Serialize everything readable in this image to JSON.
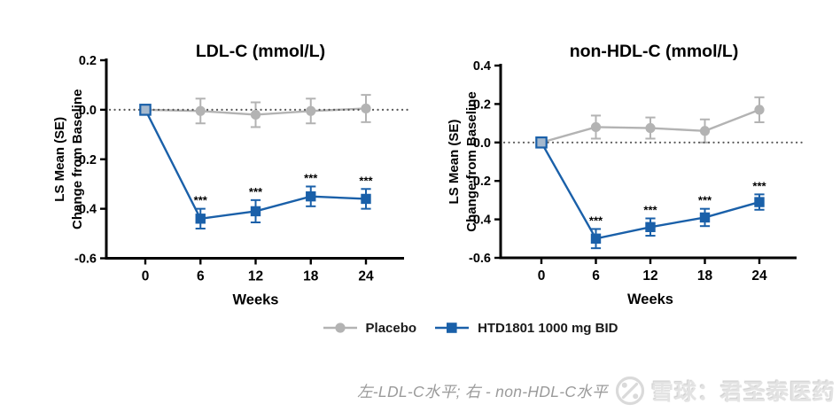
{
  "legend": {
    "items": [
      {
        "label": "Placebo",
        "color": "#b3b3b3",
        "marker": "circle"
      },
      {
        "label": "HTD1801 1000 mg BID",
        "color": "#1a60a9",
        "marker": "square"
      }
    ]
  },
  "caption": {
    "text": "左-LDL-C水平; 右 - non-HDL-C水平"
  },
  "watermark": {
    "brand": "雪球：君圣泰医药",
    "logo_icon": "xueqiu-logo-icon"
  },
  "chart_data": [
    {
      "type": "line",
      "title": "LDL-C (mmol/L)",
      "xlabel": "Weeks",
      "ylabel_line1": "LS Mean (SE)",
      "ylabel_line2": "Change from Baseline",
      "x": [
        0,
        6,
        12,
        18,
        24
      ],
      "ylim": [
        -0.6,
        0.2
      ],
      "ytick_labels": [
        "0.2",
        "0.0",
        "-0.2",
        "-0.4",
        "-0.6"
      ],
      "zero_baseline": true,
      "grid": false,
      "legend_position": "bottom",
      "series": [
        {
          "name": "Placebo",
          "color": "#b3b3b3",
          "marker": "circle",
          "values": [
            0.0,
            -0.005,
            -0.02,
            -0.005,
            0.005
          ],
          "se": [
            0,
            0.05,
            0.05,
            0.05,
            0.055
          ],
          "sig": [
            "",
            "",
            "",
            "",
            ""
          ]
        },
        {
          "name": "HTD1801 1000 mg BID",
          "color": "#1a60a9",
          "marker": "square",
          "values": [
            0.0,
            -0.44,
            -0.41,
            -0.35,
            -0.36
          ],
          "se": [
            0,
            0.04,
            0.045,
            0.04,
            0.04
          ],
          "sig": [
            "",
            "***",
            "***",
            "***",
            "***"
          ]
        }
      ]
    },
    {
      "type": "line",
      "title": "non-HDL-C (mmol/L)",
      "xlabel": "Weeks",
      "ylabel_line1": "LS Mean (SE)",
      "ylabel_line2": "Change from Baseline",
      "x": [
        0,
        6,
        12,
        18,
        24
      ],
      "ylim": [
        -0.6,
        0.4
      ],
      "ytick_labels": [
        "0.4",
        "0.2",
        "0.0",
        "-0.2",
        "-0.4",
        "-0.6"
      ],
      "zero_baseline": true,
      "grid": false,
      "legend_position": "bottom",
      "series": [
        {
          "name": "Placebo",
          "color": "#b3b3b3",
          "marker": "circle",
          "values": [
            0.0,
            0.08,
            0.075,
            0.06,
            0.17
          ],
          "se": [
            0,
            0.06,
            0.055,
            0.06,
            0.065
          ],
          "sig": [
            "",
            "",
            "",
            "",
            ""
          ]
        },
        {
          "name": "HTD1801 1000 mg BID",
          "color": "#1a60a9",
          "marker": "square",
          "values": [
            0.0,
            -0.5,
            -0.44,
            -0.39,
            -0.31
          ],
          "se": [
            0,
            0.05,
            0.045,
            0.045,
            0.04
          ],
          "sig": [
            "",
            "***",
            "***",
            "***",
            "***"
          ]
        }
      ]
    }
  ]
}
